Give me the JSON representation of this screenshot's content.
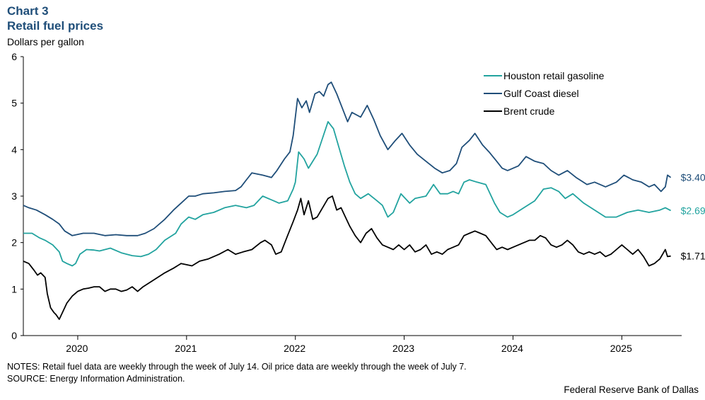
{
  "header": {
    "chart_number": "Chart 3",
    "title": "Retail fuel prices",
    "units": "Dollars per gallon"
  },
  "notes": "NOTES: Retail fuel data are weekly through the week of July 14. Oil price data are weekly through the week of July 7.",
  "source": "SOURCE: Energy Information Administration.",
  "credit": "Federal Reserve Bank of Dallas",
  "colors": {
    "houston_gasoline": "#22a39f",
    "gulf_diesel": "#1f4e79",
    "brent": "#000000",
    "title": "#1f4e79"
  },
  "chart_data": {
    "type": "line",
    "title": "Retail fuel prices",
    "ylabel": "Dollars per gallon",
    "xlabel": "",
    "ylim": [
      0,
      6
    ],
    "yticks": [
      0,
      1,
      2,
      3,
      4,
      5,
      6
    ],
    "xlim": [
      2019.5,
      2025.55
    ],
    "year_labels": [
      "2020",
      "2021",
      "2022",
      "2023",
      "2024",
      "2025"
    ],
    "year_boundaries": [
      2020,
      2021,
      2022,
      2023,
      2024,
      2025
    ],
    "legend_position": "top-right",
    "series": [
      {
        "name": "Houston retail gasoline",
        "color": "#22a39f",
        "end_label": "$2.69",
        "points": [
          [
            2019.5,
            2.2
          ],
          [
            2019.58,
            2.2
          ],
          [
            2019.65,
            2.1
          ],
          [
            2019.7,
            2.05
          ],
          [
            2019.77,
            1.95
          ],
          [
            2019.83,
            1.8
          ],
          [
            2019.86,
            1.6
          ],
          [
            2019.9,
            1.55
          ],
          [
            2019.95,
            1.5
          ],
          [
            2019.98,
            1.55
          ],
          [
            2020.02,
            1.75
          ],
          [
            2020.08,
            1.85
          ],
          [
            2020.15,
            1.84
          ],
          [
            2020.2,
            1.82
          ],
          [
            2020.3,
            1.88
          ],
          [
            2020.4,
            1.78
          ],
          [
            2020.5,
            1.72
          ],
          [
            2020.58,
            1.7
          ],
          [
            2020.65,
            1.75
          ],
          [
            2020.72,
            1.85
          ],
          [
            2020.8,
            2.05
          ],
          [
            2020.9,
            2.2
          ],
          [
            2020.95,
            2.4
          ],
          [
            2021.02,
            2.55
          ],
          [
            2021.08,
            2.5
          ],
          [
            2021.15,
            2.6
          ],
          [
            2021.25,
            2.65
          ],
          [
            2021.35,
            2.75
          ],
          [
            2021.45,
            2.8
          ],
          [
            2021.55,
            2.75
          ],
          [
            2021.62,
            2.8
          ],
          [
            2021.7,
            3.0
          ],
          [
            2021.8,
            2.9
          ],
          [
            2021.85,
            2.85
          ],
          [
            2021.93,
            2.9
          ],
          [
            2021.98,
            3.15
          ],
          [
            2022.0,
            3.3
          ],
          [
            2022.03,
            3.95
          ],
          [
            2022.08,
            3.8
          ],
          [
            2022.12,
            3.6
          ],
          [
            2022.2,
            3.9
          ],
          [
            2022.25,
            4.25
          ],
          [
            2022.3,
            4.6
          ],
          [
            2022.35,
            4.45
          ],
          [
            2022.4,
            4.05
          ],
          [
            2022.45,
            3.65
          ],
          [
            2022.5,
            3.3
          ],
          [
            2022.55,
            3.05
          ],
          [
            2022.6,
            2.95
          ],
          [
            2022.67,
            3.05
          ],
          [
            2022.75,
            2.9
          ],
          [
            2022.8,
            2.8
          ],
          [
            2022.85,
            2.55
          ],
          [
            2022.9,
            2.65
          ],
          [
            2022.97,
            3.05
          ],
          [
            2023.05,
            2.85
          ],
          [
            2023.1,
            2.95
          ],
          [
            2023.2,
            3.0
          ],
          [
            2023.27,
            3.25
          ],
          [
            2023.33,
            3.05
          ],
          [
            2023.4,
            3.05
          ],
          [
            2023.45,
            3.1
          ],
          [
            2023.5,
            3.05
          ],
          [
            2023.55,
            3.3
          ],
          [
            2023.6,
            3.35
          ],
          [
            2023.67,
            3.3
          ],
          [
            2023.75,
            3.25
          ],
          [
            2023.83,
            2.85
          ],
          [
            2023.88,
            2.65
          ],
          [
            2023.95,
            2.55
          ],
          [
            2024.0,
            2.6
          ],
          [
            2024.1,
            2.75
          ],
          [
            2024.2,
            2.9
          ],
          [
            2024.28,
            3.15
          ],
          [
            2024.35,
            3.18
          ],
          [
            2024.42,
            3.1
          ],
          [
            2024.48,
            2.95
          ],
          [
            2024.55,
            3.05
          ],
          [
            2024.65,
            2.85
          ],
          [
            2024.75,
            2.7
          ],
          [
            2024.85,
            2.55
          ],
          [
            2024.95,
            2.55
          ],
          [
            2025.05,
            2.65
          ],
          [
            2025.15,
            2.7
          ],
          [
            2025.25,
            2.65
          ],
          [
            2025.35,
            2.7
          ],
          [
            2025.4,
            2.75
          ],
          [
            2025.45,
            2.69
          ]
        ]
      },
      {
        "name": "Gulf Coast diesel",
        "color": "#1f4e79",
        "end_label": "$3.40",
        "points": [
          [
            2019.5,
            2.8
          ],
          [
            2019.55,
            2.75
          ],
          [
            2019.62,
            2.7
          ],
          [
            2019.7,
            2.6
          ],
          [
            2019.77,
            2.5
          ],
          [
            2019.83,
            2.4
          ],
          [
            2019.88,
            2.25
          ],
          [
            2019.95,
            2.15
          ],
          [
            2020.05,
            2.2
          ],
          [
            2020.15,
            2.2
          ],
          [
            2020.25,
            2.15
          ],
          [
            2020.35,
            2.17
          ],
          [
            2020.45,
            2.15
          ],
          [
            2020.55,
            2.15
          ],
          [
            2020.62,
            2.2
          ],
          [
            2020.7,
            2.3
          ],
          [
            2020.8,
            2.5
          ],
          [
            2020.88,
            2.7
          ],
          [
            2020.95,
            2.85
          ],
          [
            2021.02,
            3.0
          ],
          [
            2021.08,
            3.0
          ],
          [
            2021.15,
            3.05
          ],
          [
            2021.25,
            3.07
          ],
          [
            2021.35,
            3.1
          ],
          [
            2021.45,
            3.12
          ],
          [
            2021.5,
            3.2
          ],
          [
            2021.55,
            3.35
          ],
          [
            2021.6,
            3.5
          ],
          [
            2021.7,
            3.45
          ],
          [
            2021.78,
            3.4
          ],
          [
            2021.83,
            3.55
          ],
          [
            2021.9,
            3.8
          ],
          [
            2021.95,
            3.95
          ],
          [
            2021.98,
            4.3
          ],
          [
            2022.0,
            4.7
          ],
          [
            2022.02,
            5.1
          ],
          [
            2022.06,
            4.9
          ],
          [
            2022.1,
            5.05
          ],
          [
            2022.13,
            4.8
          ],
          [
            2022.18,
            5.2
          ],
          [
            2022.22,
            5.25
          ],
          [
            2022.26,
            5.15
          ],
          [
            2022.3,
            5.4
          ],
          [
            2022.33,
            5.45
          ],
          [
            2022.38,
            5.2
          ],
          [
            2022.43,
            4.9
          ],
          [
            2022.48,
            4.6
          ],
          [
            2022.52,
            4.8
          ],
          [
            2022.6,
            4.7
          ],
          [
            2022.66,
            4.95
          ],
          [
            2022.72,
            4.65
          ],
          [
            2022.78,
            4.3
          ],
          [
            2022.85,
            4.0
          ],
          [
            2022.92,
            4.2
          ],
          [
            2022.98,
            4.35
          ],
          [
            2023.05,
            4.1
          ],
          [
            2023.12,
            3.9
          ],
          [
            2023.2,
            3.75
          ],
          [
            2023.28,
            3.6
          ],
          [
            2023.35,
            3.5
          ],
          [
            2023.42,
            3.55
          ],
          [
            2023.48,
            3.7
          ],
          [
            2023.53,
            4.05
          ],
          [
            2023.6,
            4.2
          ],
          [
            2023.65,
            4.35
          ],
          [
            2023.72,
            4.1
          ],
          [
            2023.78,
            3.95
          ],
          [
            2023.85,
            3.75
          ],
          [
            2023.9,
            3.6
          ],
          [
            2023.95,
            3.55
          ],
          [
            2024.05,
            3.65
          ],
          [
            2024.12,
            3.85
          ],
          [
            2024.2,
            3.75
          ],
          [
            2024.28,
            3.7
          ],
          [
            2024.35,
            3.55
          ],
          [
            2024.42,
            3.45
          ],
          [
            2024.5,
            3.55
          ],
          [
            2024.58,
            3.4
          ],
          [
            2024.68,
            3.25
          ],
          [
            2024.75,
            3.3
          ],
          [
            2024.85,
            3.2
          ],
          [
            2024.95,
            3.3
          ],
          [
            2025.02,
            3.45
          ],
          [
            2025.1,
            3.35
          ],
          [
            2025.18,
            3.3
          ],
          [
            2025.25,
            3.2
          ],
          [
            2025.3,
            3.25
          ],
          [
            2025.36,
            3.1
          ],
          [
            2025.4,
            3.2
          ],
          [
            2025.42,
            3.45
          ],
          [
            2025.45,
            3.4
          ]
        ]
      },
      {
        "name": "Brent crude",
        "color": "#000000",
        "end_label": "$1.71",
        "points": [
          [
            2019.5,
            1.6
          ],
          [
            2019.55,
            1.55
          ],
          [
            2019.6,
            1.4
          ],
          [
            2019.63,
            1.3
          ],
          [
            2019.66,
            1.35
          ],
          [
            2019.7,
            1.25
          ],
          [
            2019.72,
            0.9
          ],
          [
            2019.75,
            0.6
          ],
          [
            2019.78,
            0.5
          ],
          [
            2019.8,
            0.45
          ],
          [
            2019.83,
            0.35
          ],
          [
            2019.86,
            0.5
          ],
          [
            2019.9,
            0.7
          ],
          [
            2019.95,
            0.85
          ],
          [
            2020.0,
            0.95
          ],
          [
            2020.05,
            1.0
          ],
          [
            2020.1,
            1.02
          ],
          [
            2020.15,
            1.05
          ],
          [
            2020.2,
            1.05
          ],
          [
            2020.25,
            0.95
          ],
          [
            2020.3,
            1.0
          ],
          [
            2020.35,
            1.0
          ],
          [
            2020.4,
            0.95
          ],
          [
            2020.45,
            0.98
          ],
          [
            2020.5,
            1.05
          ],
          [
            2020.55,
            0.95
          ],
          [
            2020.6,
            1.05
          ],
          [
            2020.7,
            1.2
          ],
          [
            2020.8,
            1.35
          ],
          [
            2020.88,
            1.45
          ],
          [
            2020.95,
            1.55
          ],
          [
            2021.05,
            1.5
          ],
          [
            2021.12,
            1.6
          ],
          [
            2021.2,
            1.65
          ],
          [
            2021.3,
            1.75
          ],
          [
            2021.38,
            1.85
          ],
          [
            2021.45,
            1.75
          ],
          [
            2021.52,
            1.8
          ],
          [
            2021.6,
            1.85
          ],
          [
            2021.68,
            2.0
          ],
          [
            2021.72,
            2.05
          ],
          [
            2021.78,
            1.95
          ],
          [
            2021.82,
            1.75
          ],
          [
            2021.87,
            1.8
          ],
          [
            2021.92,
            2.1
          ],
          [
            2021.98,
            2.45
          ],
          [
            2022.02,
            2.7
          ],
          [
            2022.05,
            2.95
          ],
          [
            2022.08,
            2.6
          ],
          [
            2022.12,
            2.9
          ],
          [
            2022.16,
            2.5
          ],
          [
            2022.2,
            2.55
          ],
          [
            2022.25,
            2.75
          ],
          [
            2022.3,
            2.95
          ],
          [
            2022.34,
            3.0
          ],
          [
            2022.38,
            2.7
          ],
          [
            2022.42,
            2.75
          ],
          [
            2022.46,
            2.55
          ],
          [
            2022.5,
            2.35
          ],
          [
            2022.55,
            2.15
          ],
          [
            2022.6,
            2.0
          ],
          [
            2022.65,
            2.2
          ],
          [
            2022.7,
            2.3
          ],
          [
            2022.75,
            2.1
          ],
          [
            2022.8,
            1.95
          ],
          [
            2022.85,
            1.9
          ],
          [
            2022.9,
            1.85
          ],
          [
            2022.95,
            1.95
          ],
          [
            2023.0,
            1.85
          ],
          [
            2023.05,
            1.95
          ],
          [
            2023.1,
            1.8
          ],
          [
            2023.15,
            1.85
          ],
          [
            2023.2,
            1.95
          ],
          [
            2023.25,
            1.75
          ],
          [
            2023.3,
            1.8
          ],
          [
            2023.35,
            1.75
          ],
          [
            2023.4,
            1.85
          ],
          [
            2023.5,
            1.95
          ],
          [
            2023.55,
            2.15
          ],
          [
            2023.6,
            2.2
          ],
          [
            2023.65,
            2.25
          ],
          [
            2023.7,
            2.2
          ],
          [
            2023.75,
            2.15
          ],
          [
            2023.8,
            2.0
          ],
          [
            2023.85,
            1.85
          ],
          [
            2023.9,
            1.9
          ],
          [
            2023.95,
            1.85
          ],
          [
            2024.0,
            1.9
          ],
          [
            2024.05,
            1.95
          ],
          [
            2024.1,
            2.0
          ],
          [
            2024.15,
            2.05
          ],
          [
            2024.2,
            2.05
          ],
          [
            2024.25,
            2.15
          ],
          [
            2024.3,
            2.1
          ],
          [
            2024.35,
            1.95
          ],
          [
            2024.4,
            1.9
          ],
          [
            2024.45,
            1.95
          ],
          [
            2024.5,
            2.05
          ],
          [
            2024.55,
            1.95
          ],
          [
            2024.6,
            1.8
          ],
          [
            2024.65,
            1.75
          ],
          [
            2024.7,
            1.8
          ],
          [
            2024.75,
            1.75
          ],
          [
            2024.8,
            1.8
          ],
          [
            2024.85,
            1.7
          ],
          [
            2024.9,
            1.75
          ],
          [
            2024.95,
            1.85
          ],
          [
            2025.0,
            1.95
          ],
          [
            2025.05,
            1.85
          ],
          [
            2025.1,
            1.75
          ],
          [
            2025.15,
            1.85
          ],
          [
            2025.2,
            1.7
          ],
          [
            2025.25,
            1.5
          ],
          [
            2025.3,
            1.55
          ],
          [
            2025.35,
            1.65
          ],
          [
            2025.4,
            1.85
          ],
          [
            2025.42,
            1.7
          ],
          [
            2025.45,
            1.71
          ]
        ]
      }
    ]
  }
}
